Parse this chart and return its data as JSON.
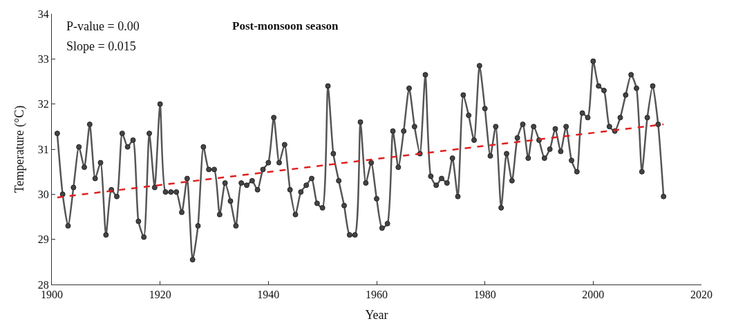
{
  "chart_data": {
    "type": "line",
    "title": "Post-monsoon season",
    "xlabel": "Year",
    "ylabel": "Temperature (°C)",
    "annotations": [
      "P-value = 0.00",
      "Slope = 0.015"
    ],
    "xlim": [
      1900,
      2020
    ],
    "xticks": [
      1900,
      1920,
      1940,
      1960,
      1980,
      2000,
      2020
    ],
    "ylim": [
      28,
      34
    ],
    "yticks": [
      28,
      29,
      30,
      31,
      32,
      33,
      34
    ],
    "series": [
      {
        "color": "#555555",
        "marker": "circle",
        "line_style": "solid",
        "x": [
          1901,
          1902,
          1903,
          1904,
          1905,
          1906,
          1907,
          1908,
          1909,
          1910,
          1911,
          1912,
          1913,
          1914,
          1915,
          1916,
          1917,
          1918,
          1919,
          1920,
          1921,
          1922,
          1923,
          1924,
          1925,
          1926,
          1927,
          1928,
          1929,
          1930,
          1931,
          1932,
          1933,
          1934,
          1935,
          1936,
          1937,
          1938,
          1939,
          1940,
          1941,
          1942,
          1943,
          1944,
          1945,
          1946,
          1947,
          1948,
          1949,
          1950,
          1951,
          1952,
          1953,
          1954,
          1955,
          1956,
          1957,
          1958,
          1959,
          1960,
          1961,
          1962,
          1963,
          1964,
          1965,
          1966,
          1967,
          1968,
          1969,
          1970,
          1971,
          1972,
          1973,
          1974,
          1975,
          1976,
          1977,
          1978,
          1979,
          1980,
          1981,
          1982,
          1983,
          1984,
          1985,
          1986,
          1987,
          1988,
          1989,
          1990,
          1991,
          1992,
          1993,
          1994,
          1995,
          1996,
          1997,
          1998,
          1999,
          2000,
          2001,
          2002,
          2003,
          2004,
          2005,
          2006,
          2007,
          2008,
          2009,
          2010,
          2011,
          2012,
          2013
        ],
        "values": [
          31.35,
          30.0,
          29.3,
          30.15,
          31.05,
          30.6,
          31.55,
          30.35,
          30.7,
          29.1,
          30.1,
          29.95,
          31.35,
          31.05,
          31.2,
          29.4,
          29.05,
          31.35,
          30.15,
          32.0,
          30.05,
          30.05,
          30.05,
          29.6,
          30.35,
          28.55,
          29.3,
          31.05,
          30.55,
          30.55,
          29.55,
          30.25,
          29.85,
          29.3,
          30.25,
          30.2,
          30.3,
          30.1,
          30.55,
          30.7,
          31.7,
          30.7,
          31.1,
          30.1,
          29.55,
          30.05,
          30.2,
          30.35,
          29.8,
          29.7,
          32.4,
          30.9,
          30.3,
          29.75,
          29.1,
          29.1,
          31.6,
          30.25,
          30.7,
          29.9,
          29.25,
          29.35,
          31.4,
          30.6,
          31.4,
          32.35,
          31.5,
          30.9,
          32.65,
          30.4,
          30.2,
          30.35,
          30.25,
          30.8,
          29.95,
          32.2,
          31.75,
          31.2,
          32.85,
          31.9,
          30.85,
          31.5,
          29.7,
          30.9,
          30.3,
          31.25,
          31.55,
          30.8,
          31.5,
          31.2,
          30.8,
          31.0,
          31.45,
          30.95,
          31.5,
          30.75,
          30.5,
          31.8,
          31.7,
          32.95,
          32.4,
          32.3,
          31.5,
          31.4,
          31.7,
          32.2,
          32.65,
          32.35,
          30.5,
          31.7,
          32.4,
          31.55,
          29.95
        ]
      },
      {
        "color": "#e02020",
        "marker": "none",
        "line_style": "dashed",
        "x": [
          1901,
          2013
        ],
        "values": [
          29.93,
          31.55
        ]
      }
    ]
  }
}
